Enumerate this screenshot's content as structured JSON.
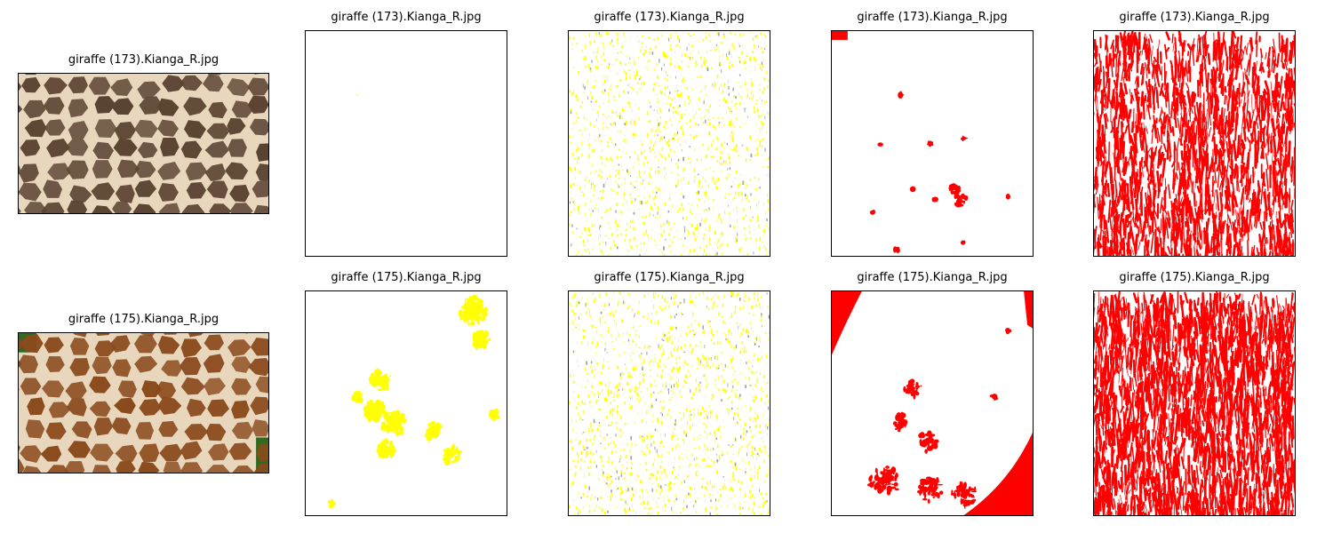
{
  "rows": [
    {
      "panels": [
        {
          "title": "giraffe (173).Kianga_R.jpg",
          "kind": "photo"
        },
        {
          "title": "giraffe (173).Kianga_R.jpg",
          "kind": "yellow-sparse-mask"
        },
        {
          "title": "giraffe (173).Kianga_R.jpg",
          "kind": "yellow-noise-mask"
        },
        {
          "title": "giraffe (173).Kianga_R.jpg",
          "kind": "red-sparse-mask"
        },
        {
          "title": "giraffe (173).Kianga_R.jpg",
          "kind": "red-texture-mask"
        }
      ]
    },
    {
      "panels": [
        {
          "title": "giraffe (175).Kianga_R.jpg",
          "kind": "photo"
        },
        {
          "title": "giraffe (175).Kianga_R.jpg",
          "kind": "yellow-blob-mask"
        },
        {
          "title": "giraffe (175).Kianga_R.jpg",
          "kind": "yellow-noise-mask"
        },
        {
          "title": "giraffe (175).Kianga_R.jpg",
          "kind": "red-edge-mask"
        },
        {
          "title": "giraffe (175).Kianga_R.jpg",
          "kind": "red-texture-mask"
        }
      ]
    }
  ],
  "colors": {
    "mask_yellow": "#ffff00",
    "mask_red": "#ff0000",
    "photo_dark": "#5b4332",
    "photo_light": "#e8d6bd",
    "photo_brown": "#8a4a1c",
    "photo_green": "#2e6b1e"
  }
}
